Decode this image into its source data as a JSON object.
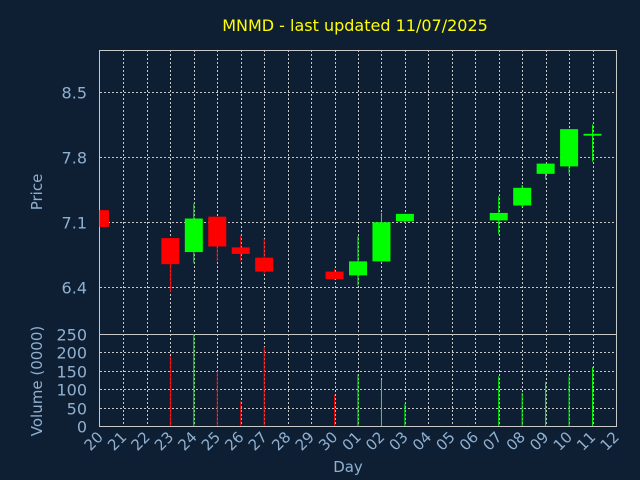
{
  "chart_data": {
    "type": "candlestick",
    "title": "MNMD - last updated 11/07/2025",
    "xlabel": "Day",
    "ylabel": "Price",
    "volume_label": "Volume (0000)",
    "grid": true,
    "colors": {
      "background": "#0f1f33",
      "title": "#ffff00",
      "axis_text": "#8fb0d0",
      "grid": "#c8c8c8",
      "up": "#00ff00",
      "down": "#ff0000"
    },
    "x_ticks": [
      "20",
      "21",
      "22",
      "23",
      "24",
      "25",
      "26",
      "27",
      "28",
      "29",
      "30",
      "01",
      "02",
      "03",
      "04",
      "05",
      "06",
      "07",
      "08",
      "09",
      "10",
      "11",
      "12"
    ],
    "price_axis": {
      "ylim": [
        5.9,
        8.95
      ],
      "ticks": [
        6.4,
        7.1,
        7.8,
        8.5
      ],
      "tick_labels": [
        "6.4",
        "7.1",
        "7.8",
        "8.5"
      ]
    },
    "volume_axis": {
      "ylim": [
        0,
        250
      ],
      "ticks": [
        0,
        50,
        100,
        150,
        200,
        250
      ],
      "tick_labels": [
        "0",
        "50",
        "100",
        "150",
        "200",
        "250"
      ]
    },
    "candles": [
      {
        "x": 0,
        "open": 7.23,
        "high": 7.23,
        "low": 7.05,
        "close": 7.05,
        "volume": 0
      },
      {
        "x": 3,
        "open": 6.93,
        "high": 6.93,
        "low": 6.35,
        "close": 6.65,
        "volume": 190
      },
      {
        "x": 4,
        "open": 6.78,
        "high": 7.3,
        "low": 6.66,
        "close": 7.14,
        "volume": 250
      },
      {
        "x": 5,
        "open": 7.16,
        "high": 7.16,
        "low": 6.68,
        "close": 6.84,
        "volume": 148
      },
      {
        "x": 6,
        "open": 6.83,
        "high": 6.96,
        "low": 6.68,
        "close": 6.76,
        "volume": 68
      },
      {
        "x": 7,
        "open": 6.72,
        "high": 6.92,
        "low": 6.55,
        "close": 6.57,
        "volume": 215
      },
      {
        "x": 10,
        "open": 6.57,
        "high": 6.6,
        "low": 6.48,
        "close": 6.49,
        "volume": 85
      },
      {
        "x": 11,
        "open": 6.53,
        "high": 6.95,
        "low": 6.42,
        "close": 6.68,
        "volume": 140
      },
      {
        "x": 12,
        "open": 6.68,
        "high": 7.2,
        "low": 6.68,
        "close": 7.1,
        "volume": 125
      },
      {
        "x": 13,
        "open": 7.11,
        "high": 7.19,
        "low": 7.1,
        "close": 7.19,
        "volume": 60
      },
      {
        "x": 17,
        "open": 7.12,
        "high": 7.38,
        "low": 6.97,
        "close": 7.2,
        "volume": 135
      },
      {
        "x": 18,
        "open": 7.28,
        "high": 7.5,
        "low": 7.26,
        "close": 7.47,
        "volume": 90
      },
      {
        "x": 19,
        "open": 7.62,
        "high": 7.73,
        "low": 7.56,
        "close": 7.73,
        "volume": 120
      },
      {
        "x": 20,
        "open": 7.7,
        "high": 8.1,
        "low": 7.62,
        "close": 8.1,
        "volume": 135
      },
      {
        "x": 21,
        "open": 8.03,
        "high": 8.15,
        "low": 7.75,
        "close": 8.05,
        "volume": 160
      }
    ]
  }
}
